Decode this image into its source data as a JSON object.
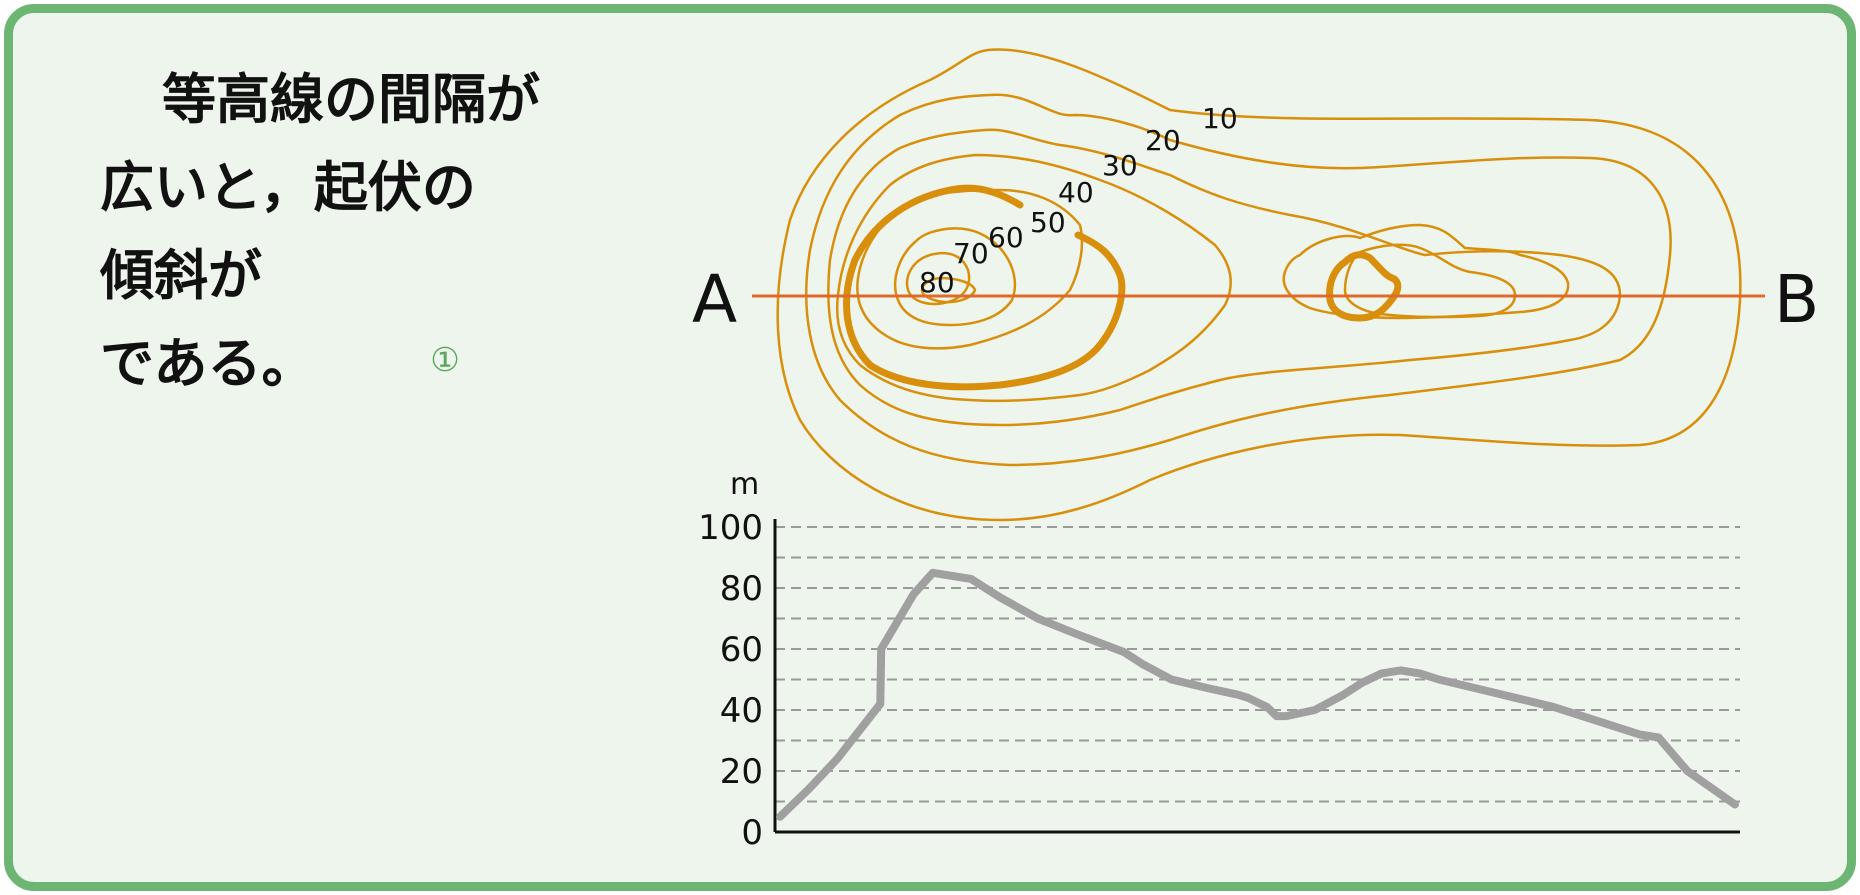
{
  "question": {
    "lines": [
      "等高線の間隔が",
      "広いと，起伏の",
      "傾斜が",
      "である。"
    ],
    "answer_marker": "①"
  },
  "map": {
    "contour_labels": [
      "10",
      "20",
      "30",
      "40",
      "50",
      "60",
      "70",
      "80"
    ],
    "point_a": "A",
    "point_b": "B",
    "contour_color": "#d88f0c",
    "section_line_color": "#e06a2c"
  },
  "chart_data": {
    "type": "line",
    "unit": "m",
    "ylim": [
      0,
      100
    ],
    "y_ticks": [
      "100",
      "80",
      "60",
      "40",
      "20",
      "0"
    ],
    "grid": "dashed",
    "grid_step": 10,
    "series_color": "#a0a0a0",
    "profile": [
      [
        0,
        5
      ],
      [
        3,
        14
      ],
      [
        6,
        24
      ],
      [
        10,
        40
      ],
      [
        10.5,
        42
      ],
      [
        10.6,
        60
      ],
      [
        14,
        78
      ],
      [
        16,
        85
      ],
      [
        20,
        83
      ],
      [
        23,
        77
      ],
      [
        27,
        70
      ],
      [
        31,
        65
      ],
      [
        36,
        59
      ],
      [
        38,
        55
      ],
      [
        41,
        50
      ],
      [
        45,
        47
      ],
      [
        48,
        45
      ],
      [
        49,
        44
      ],
      [
        51,
        41
      ],
      [
        52,
        38
      ],
      [
        53,
        38
      ],
      [
        56,
        40
      ],
      [
        59,
        45
      ],
      [
        61,
        49
      ],
      [
        63,
        52
      ],
      [
        65,
        53
      ],
      [
        67,
        52
      ],
      [
        69,
        50
      ],
      [
        73,
        47
      ],
      [
        77,
        44
      ],
      [
        81,
        41
      ],
      [
        84,
        38
      ],
      [
        88,
        34
      ],
      [
        90,
        32
      ],
      [
        92,
        31
      ],
      [
        95,
        20
      ],
      [
        100,
        9
      ]
    ]
  }
}
